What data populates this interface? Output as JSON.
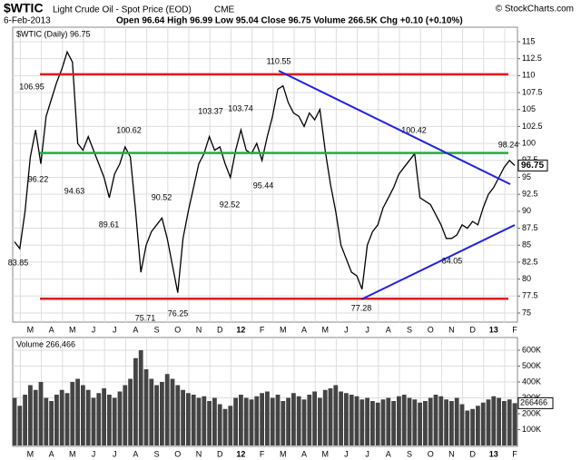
{
  "header": {
    "symbol": "$WTIC",
    "name": "Light Crude Oil - Spot Price (EOD)",
    "exchange": "CME",
    "copyright": "© StockCharts.com",
    "date": "6-Feb-2013",
    "stats": "Open 96.64  High 96.99  Low 95.04  Close 96.75  Volume 266.5K  Chg +0.10 (+0.10%)"
  },
  "chart_data": [
    {
      "type": "line",
      "legend": "$WTIC (Daily) 96.75",
      "color": "#000000",
      "categories": [
        null,
        null,
        null,
        "M",
        null,
        null,
        null,
        "A",
        null,
        null,
        null,
        "M",
        null,
        null,
        null,
        "J",
        null,
        null,
        null,
        "J",
        null,
        null,
        null,
        "A",
        null,
        null,
        null,
        "S",
        null,
        null,
        null,
        "O",
        null,
        null,
        null,
        "N",
        null,
        null,
        null,
        "D",
        null,
        null,
        null,
        "12",
        null,
        null,
        null,
        "F",
        null,
        null,
        null,
        "M",
        null,
        null,
        null,
        "A",
        null,
        null,
        null,
        "M",
        null,
        null,
        null,
        "J",
        null,
        null,
        null,
        "J",
        null,
        null,
        null,
        "A",
        null,
        null,
        null,
        "S",
        null,
        null,
        null,
        "O",
        null,
        null,
        null,
        "N",
        null,
        null,
        null,
        "D",
        null,
        null,
        null,
        "13",
        null,
        null,
        null,
        "F"
      ],
      "values": [
        85.5,
        84.5,
        90,
        98,
        102,
        97,
        104,
        106.5,
        109,
        111,
        113.5,
        112,
        100,
        99,
        101,
        99,
        97,
        95,
        92,
        95.5,
        97,
        99.5,
        98,
        90,
        81,
        85,
        87,
        88,
        89,
        86,
        82,
        78,
        86,
        90,
        93.5,
        97,
        98.5,
        101,
        99,
        99.5,
        97,
        95,
        99,
        102,
        99,
        98.5,
        100,
        97.5,
        101,
        104,
        108,
        108.5,
        106,
        104.5,
        104,
        102.5,
        104.5,
        103.5,
        105,
        99,
        94,
        90,
        85,
        83,
        81,
        80.5,
        78.5,
        85,
        87,
        88,
        90.5,
        92,
        93.5,
        95.5,
        96.5,
        97.5,
        98.5,
        92,
        91.5,
        91,
        89.5,
        88,
        86,
        86,
        86.5,
        88,
        87.5,
        88.5,
        88,
        90.5,
        92.5,
        93.5,
        95,
        96.5,
        97.5,
        96.75
      ],
      "ylim": [
        73.66,
        117.14
      ],
      "yticks": [
        75,
        77.5,
        80,
        82.5,
        85,
        87.5,
        90,
        92.5,
        95,
        97.5,
        100,
        102.5,
        105,
        107.5,
        110,
        112.5,
        115
      ],
      "reference_lines": [
        {
          "value": 110.2,
          "color": "#e41a1a"
        },
        {
          "value": 98.6,
          "color": "#22aa44"
        },
        {
          "value": 77.1,
          "color": "#e41a1a"
        }
      ],
      "annotations": [
        "83.85",
        "106.95",
        "96.22",
        "94.63",
        "89.61",
        "100.62",
        "75.71",
        "90.52",
        "76.25",
        "103.37",
        "103.74",
        "92.52",
        "95.44",
        "110.55",
        "77.28",
        "100.42",
        "84.05",
        "98.24"
      ],
      "grid": true
    },
    {
      "type": "bar",
      "legend": "Volume 266,466",
      "color": "#444444",
      "categories": [
        null,
        null,
        null,
        "M",
        null,
        null,
        null,
        "A",
        null,
        null,
        null,
        "M",
        null,
        null,
        null,
        "J",
        null,
        null,
        null,
        "J",
        null,
        null,
        null,
        "A",
        null,
        null,
        null,
        "S",
        null,
        null,
        null,
        "O",
        null,
        null,
        null,
        "N",
        null,
        null,
        null,
        "D",
        null,
        null,
        null,
        "12",
        null,
        null,
        null,
        "F",
        null,
        null,
        null,
        "M",
        null,
        null,
        null,
        "A",
        null,
        null,
        null,
        "M",
        null,
        null,
        null,
        "J",
        null,
        null,
        null,
        "J",
        null,
        null,
        null,
        "A",
        null,
        null,
        null,
        "S",
        null,
        null,
        null,
        "O",
        null,
        null,
        null,
        "N",
        null,
        null,
        null,
        "D",
        null,
        null,
        null,
        "13",
        null,
        null,
        null,
        "F"
      ],
      "values": [
        300000,
        250000,
        320000,
        380000,
        350000,
        400000,
        300000,
        280000,
        320000,
        350000,
        330000,
        400000,
        420000,
        380000,
        350000,
        300000,
        330000,
        360000,
        320000,
        300000,
        340000,
        380000,
        420000,
        550000,
        600000,
        480000,
        420000,
        380000,
        400000,
        450000,
        420000,
        380000,
        350000,
        330000,
        320000,
        300000,
        310000,
        280000,
        300000,
        260000,
        230000,
        250000,
        300000,
        320000,
        300000,
        290000,
        310000,
        330000,
        340000,
        300000,
        320000,
        280000,
        300000,
        330000,
        310000,
        290000,
        320000,
        340000,
        300000,
        350000,
        360000,
        380000,
        340000,
        330000,
        320000,
        310000,
        290000,
        300000,
        280000,
        270000,
        290000,
        300000,
        280000,
        310000,
        320000,
        300000,
        290000,
        270000,
        280000,
        300000,
        320000,
        310000,
        290000,
        280000,
        300000,
        260000,
        220000,
        230000,
        250000,
        270000,
        290000,
        310000,
        300000,
        280000,
        290000,
        266466
      ],
      "ylim": [
        0,
        680000
      ],
      "yticks": [
        {
          "value": 100000,
          "label": "100K"
        },
        {
          "value": 200000,
          "label": "200K"
        },
        {
          "value": 300000,
          "label": "300K"
        },
        {
          "value": 400000,
          "label": "400K"
        },
        {
          "value": 500000,
          "label": "500K"
        },
        {
          "value": 600000,
          "label": "600K"
        }
      ],
      "grid": true
    }
  ]
}
